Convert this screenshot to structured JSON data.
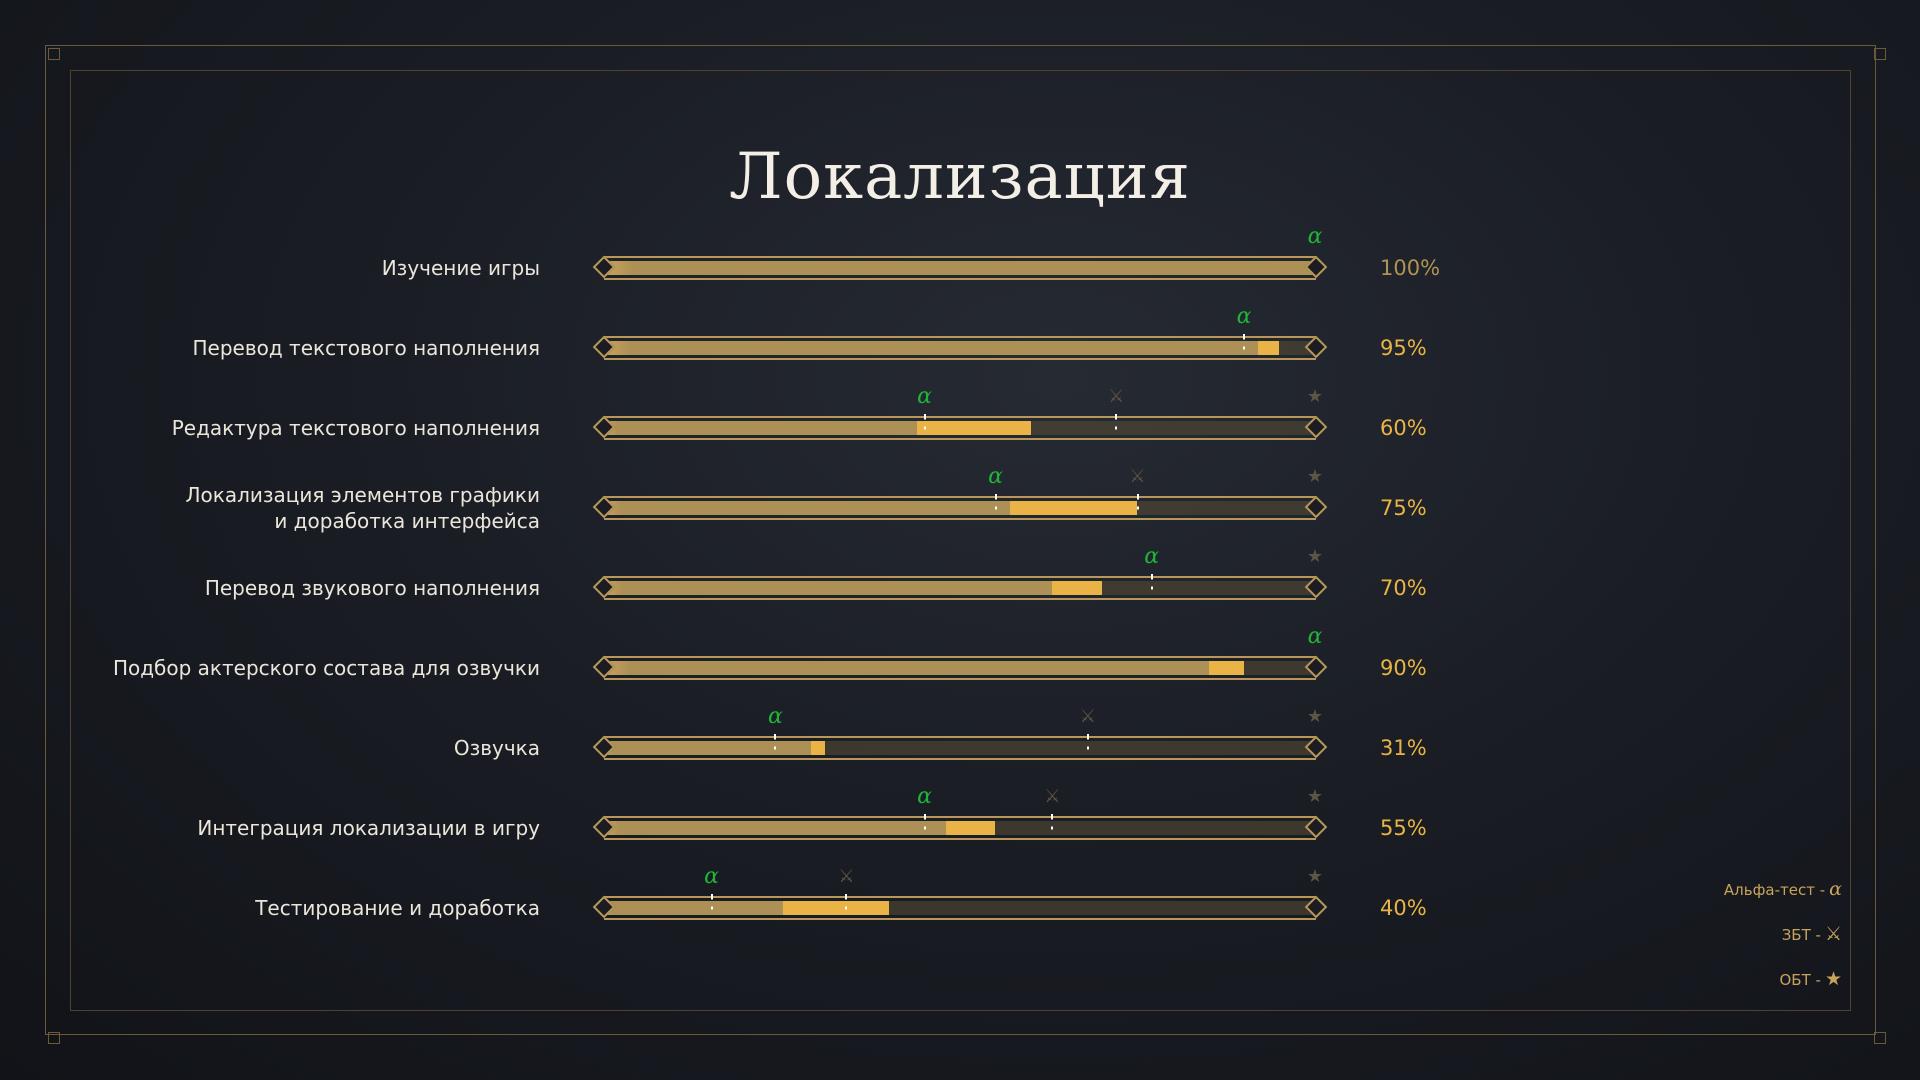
{
  "title": "Локализация",
  "colors": {
    "accent": "#e9b445",
    "completed": "#ad9056",
    "alpha": "#1fb536",
    "milestone_dim": "#5d5544"
  },
  "rows": [
    {
      "label": "Изучение игры",
      "percent_label": "100%",
      "percent": 100,
      "previous": 100,
      "alpha": 100,
      "zbt": null,
      "obt": null
    },
    {
      "label": "Перевод текстового наполнения",
      "percent_label": "95%",
      "percent": 95,
      "previous": 92,
      "alpha": 90,
      "zbt": null,
      "obt": null
    },
    {
      "label": "Редактура текстового наполнения",
      "percent_label": "60%",
      "percent": 60,
      "previous": 44,
      "alpha": 45,
      "zbt": 72,
      "obt": 100
    },
    {
      "label": "Локализация элементов графики\nи доработка интерфейса",
      "percent_label": "75%",
      "percent": 75,
      "previous": 57,
      "alpha": 55,
      "zbt": 75,
      "obt": 100
    },
    {
      "label": "Перевод звукового наполнения",
      "percent_label": "70%",
      "percent": 70,
      "previous": 63,
      "alpha": 77,
      "zbt": null,
      "obt": 100
    },
    {
      "label": "Подбор актерского состава для озвучки",
      "percent_label": "90%",
      "percent": 90,
      "previous": 85,
      "alpha": 100,
      "zbt": null,
      "obt": null
    },
    {
      "label": "Озвучка",
      "percent_label": "31%",
      "percent": 31,
      "previous": 29,
      "alpha": 24,
      "zbt": 68,
      "obt": 100
    },
    {
      "label": "Интеграция локализации в игру",
      "percent_label": "55%",
      "percent": 55,
      "previous": 48,
      "alpha": 45,
      "zbt": 63,
      "obt": 100
    },
    {
      "label": "Тестирование и доработка",
      "percent_label": "40%",
      "percent": 40,
      "previous": 25,
      "alpha": 15,
      "zbt": 34,
      "obt": 100
    }
  ],
  "legend": [
    {
      "label": "Альфа-тест -",
      "icon": "alpha-icon",
      "symbol": "α"
    },
    {
      "label": "ЗБТ -",
      "icon": "crossed-swords-icon",
      "symbol": "⚔"
    },
    {
      "label": "ОБТ -",
      "icon": "star-icon",
      "symbol": "★"
    }
  ]
}
